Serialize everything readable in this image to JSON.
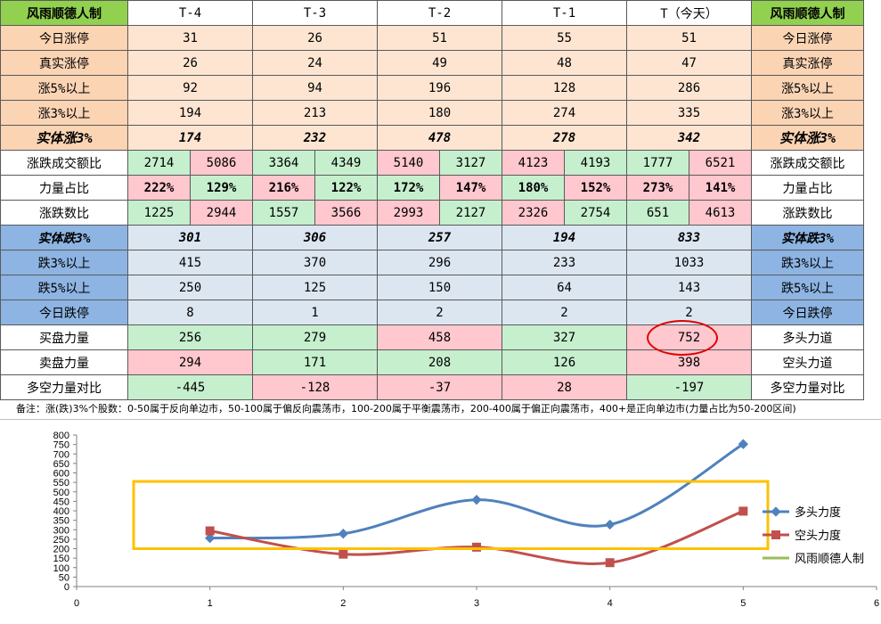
{
  "table": {
    "corner": "风雨顺德人制",
    "columns": [
      "T-4",
      "T-3",
      "T-2",
      "T-1",
      "T（今天）"
    ],
    "right_header": "风雨顺德人制",
    "rows_up": [
      {
        "label": "今日涨停",
        "values": [
          "31",
          "26",
          "51",
          "55",
          "51"
        ]
      },
      {
        "label": "真实涨停",
        "values": [
          "26",
          "24",
          "49",
          "48",
          "47"
        ]
      },
      {
        "label": "涨5%以上",
        "values": [
          "92",
          "94",
          "196",
          "128",
          "286"
        ]
      },
      {
        "label": "涨3%以上",
        "values": [
          "194",
          "213",
          "180",
          "274",
          "335"
        ]
      }
    ],
    "solid_up": {
      "label": "实体涨3%",
      "values": [
        "174",
        "232",
        "478",
        "278",
        "342"
      ]
    },
    "pairs": [
      {
        "label": "涨跌成交额比",
        "values": [
          [
            "2714",
            "5086"
          ],
          [
            "3364",
            "4349"
          ],
          [
            "5140",
            "3127"
          ],
          [
            "4123",
            "4193"
          ],
          [
            "1777",
            "6521"
          ]
        ]
      },
      {
        "label": "力量占比",
        "values": [
          [
            "222%",
            "129%"
          ],
          [
            "216%",
            "122%"
          ],
          [
            "172%",
            "147%"
          ],
          [
            "180%",
            "152%"
          ],
          [
            "273%",
            "141%"
          ]
        ]
      },
      {
        "label": "涨跌数比",
        "values": [
          [
            "1225",
            "2944"
          ],
          [
            "1557",
            "3566"
          ],
          [
            "2993",
            "2127"
          ],
          [
            "2326",
            "2754"
          ],
          [
            "651",
            "4613"
          ]
        ]
      }
    ],
    "solid_down": {
      "label": "实体跌3%",
      "values": [
        "301",
        "306",
        "257",
        "194",
        "833"
      ]
    },
    "rows_down": [
      {
        "label": "跌3%以上",
        "values": [
          "415",
          "370",
          "296",
          "233",
          "1033"
        ]
      },
      {
        "label": "跌5%以上",
        "values": [
          "250",
          "125",
          "150",
          "64",
          "143"
        ]
      },
      {
        "label": "今日跌停",
        "values": [
          "8",
          "1",
          "2",
          "2",
          "2"
        ]
      }
    ],
    "power": [
      {
        "label": "买盘力量",
        "right": "多头力道",
        "values": [
          "256",
          "279",
          "458",
          "327",
          "752"
        ]
      },
      {
        "label": "卖盘力量",
        "right": "空头力道",
        "values": [
          "294",
          "171",
          "208",
          "126",
          "398"
        ]
      },
      {
        "label": "多空力量对比",
        "right": "多空力量对比",
        "values": [
          "-445",
          "-128",
          "-37",
          "28",
          "-197"
        ]
      }
    ]
  },
  "note": "备注：涨(跌)3%个股数：0-50属于反向单边市，50-100属于偏反向震荡市，100-200属于平衡震荡市，200-400属于偏正向震荡市，400+是正向单边市(力量占比为50-200区间)",
  "colors": {
    "series1": "#4f81bd",
    "series2": "#c0504d",
    "series3": "#9bbb59",
    "highlight_box": "#ffc000",
    "circle": "#e00000"
  },
  "chart_data": {
    "type": "line",
    "xlim": [
      0,
      6
    ],
    "ylim": [
      0,
      800
    ],
    "xticks": [
      "0",
      "1",
      "2",
      "3",
      "4",
      "5",
      "6"
    ],
    "yticks": [
      "0",
      "50",
      "100",
      "150",
      "200",
      "250",
      "300",
      "350",
      "400",
      "450",
      "500",
      "550",
      "600",
      "650",
      "700",
      "750",
      "800"
    ],
    "legend_position": "right",
    "series": [
      {
        "name": "多头力度",
        "x": [
          1,
          2,
          3,
          4,
          5
        ],
        "values": [
          256,
          279,
          458,
          327,
          752
        ]
      },
      {
        "name": "空头力度",
        "x": [
          1,
          2,
          3,
          4,
          5
        ],
        "values": [
          294,
          171,
          208,
          126,
          398
        ]
      },
      {
        "name": "风雨顺德人制",
        "x": [],
        "values": []
      }
    ]
  }
}
